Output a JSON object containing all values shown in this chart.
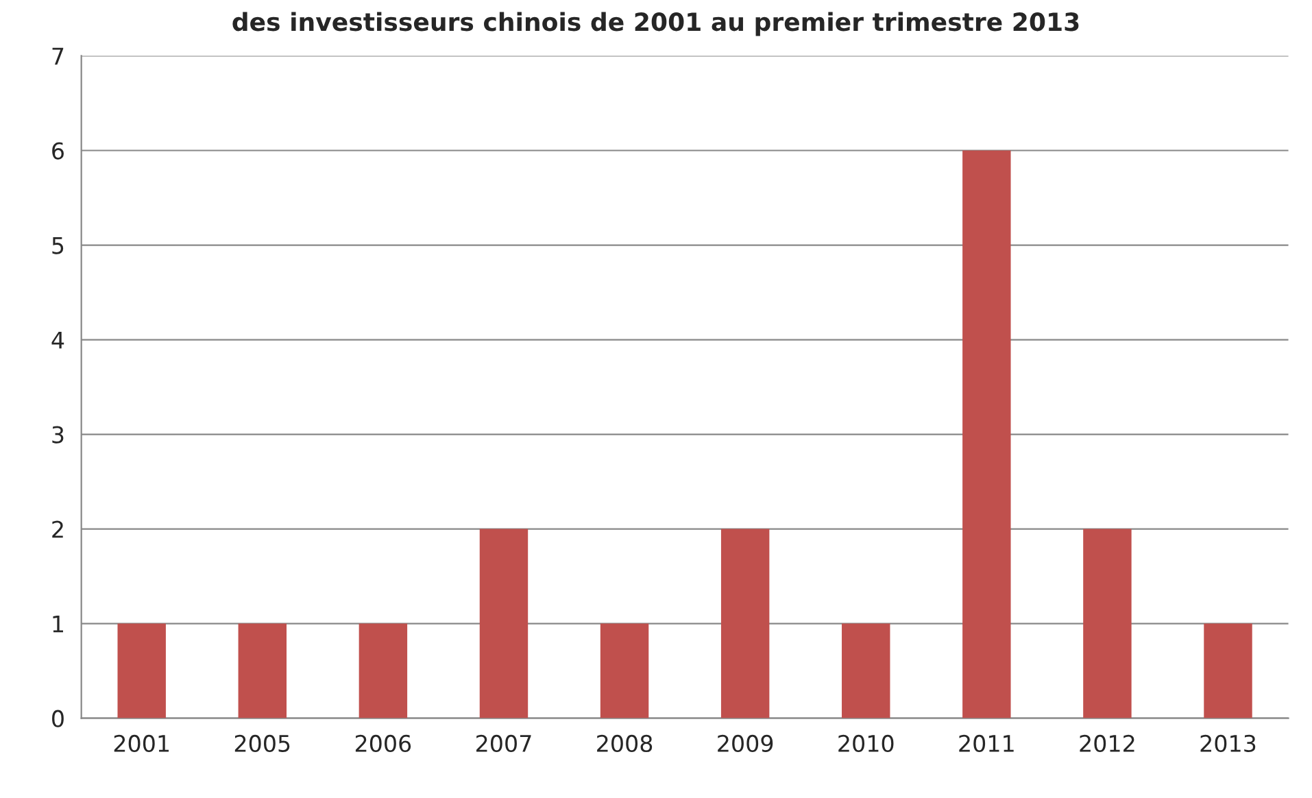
{
  "chart_data": {
    "type": "bar",
    "title": "des investisseurs chinois de 2001 au premier trimestre 2013",
    "categories": [
      "2001",
      "2005",
      "2006",
      "2007",
      "2008",
      "2009",
      "2010",
      "2011",
      "2012",
      "2013"
    ],
    "values": [
      1,
      1,
      1,
      2,
      1,
      2,
      1,
      6,
      2,
      1
    ],
    "color": "#c0504d",
    "ylim": [
      0,
      7
    ],
    "yticks": [
      0,
      1,
      2,
      3,
      4,
      5,
      6,
      7
    ],
    "grid": "y"
  }
}
